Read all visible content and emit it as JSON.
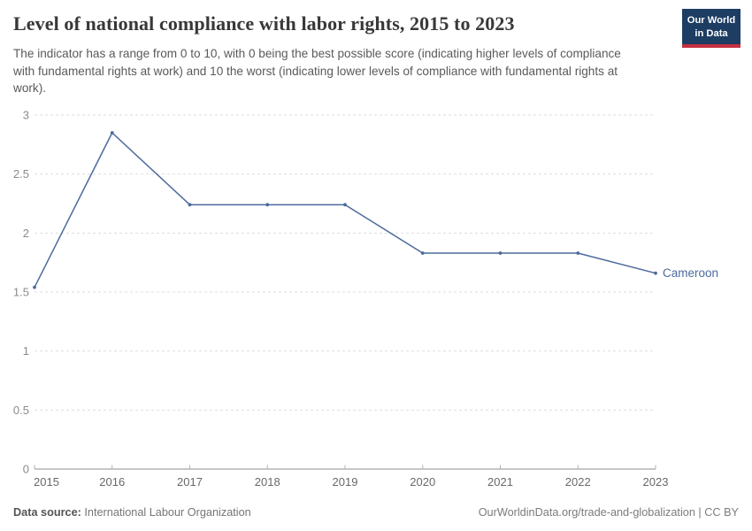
{
  "header": {
    "title": "Level of national compliance with labor rights, 2015 to 2023",
    "subtitle": "The indicator has a range from 0 to 10, with 0 being the best possible score (indicating higher levels of compliance with fundamental rights at work) and 10 the worst (indicating lower levels of compliance with fundamental rights at work).",
    "logo": {
      "line1": "Our World",
      "line2": "in Data"
    }
  },
  "chart_data": {
    "type": "line",
    "title": "Level of national compliance with labor rights, 2015 to 2023",
    "x": [
      2015,
      2016,
      2017,
      2018,
      2019,
      2020,
      2021,
      2022,
      2023
    ],
    "series": [
      {
        "name": "Cameroon",
        "values": [
          1.54,
          2.85,
          2.24,
          2.24,
          2.24,
          1.83,
          1.83,
          1.83,
          1.66
        ],
        "color": "#4c6a9c"
      }
    ],
    "xlabel": "",
    "ylabel": "",
    "ylim": [
      0,
      3
    ],
    "yticks": [
      0,
      0.5,
      1,
      1.5,
      2,
      2.5,
      3
    ],
    "grid": true,
    "legend_position": "end-of-line"
  },
  "footer": {
    "source_label": "Data source:",
    "source_value": "International Labour Organization",
    "credit": "OurWorldinData.org/trade-and-globalization | CC BY"
  },
  "colors": {
    "line": "#4c6a9c",
    "grid": "#dedede",
    "axis": "#8f8f8f",
    "tick": "#b3b3b3",
    "y_label": "#8b8b8b",
    "x_label": "#696969",
    "logo_bg": "#1d3d63",
    "logo_stripe": "#c5303e"
  }
}
